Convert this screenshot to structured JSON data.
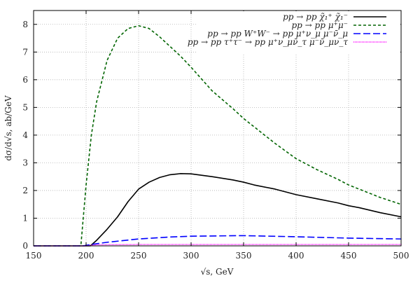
{
  "chart_data": {
    "type": "line",
    "xlabel": "√s, GeV",
    "ylabel": "dσ/d√s, ab/GeV",
    "xlim": [
      150,
      500
    ],
    "ylim": [
      0,
      8.5
    ],
    "xticks": [
      150,
      200,
      250,
      300,
      350,
      400,
      450,
      500
    ],
    "yticks": [
      0,
      1,
      2,
      3,
      4,
      5,
      6,
      7,
      8
    ],
    "grid": true,
    "legend_position": "top-right",
    "series": [
      {
        "name": "pp → pp χ̃₁⁺ χ̃₁⁻",
        "color": "#000000",
        "dash": "solid",
        "x": [
          150,
          204,
          210,
          220,
          230,
          240,
          250,
          260,
          270,
          280,
          290,
          300,
          320,
          340,
          350,
          360,
          380,
          400,
          420,
          440,
          450,
          460,
          480,
          500
        ],
        "y": [
          0,
          0,
          0.2,
          0.6,
          1.05,
          1.6,
          2.05,
          2.3,
          2.47,
          2.57,
          2.61,
          2.6,
          2.5,
          2.38,
          2.3,
          2.2,
          2.05,
          1.85,
          1.7,
          1.55,
          1.45,
          1.38,
          1.2,
          1.05
        ]
      },
      {
        "name": "pp → pp μ⁺μ⁻",
        "color": "#006400",
        "dash": "dashed",
        "x": [
          150,
          195,
          200,
          205,
          210,
          220,
          230,
          240,
          250,
          260,
          270,
          280,
          290,
          300,
          320,
          340,
          350,
          360,
          380,
          400,
          420,
          440,
          450,
          460,
          480,
          500
        ],
        "y": [
          0,
          0,
          2.2,
          4.0,
          5.2,
          6.7,
          7.5,
          7.85,
          7.95,
          7.85,
          7.55,
          7.2,
          6.85,
          6.45,
          5.6,
          4.95,
          4.6,
          4.3,
          3.7,
          3.15,
          2.75,
          2.4,
          2.2,
          2.05,
          1.75,
          1.5
        ]
      },
      {
        "name": "pp → pp W⁺W⁻ → pp μ⁺ν_μ μ⁻ν̄_μ",
        "color": "#0000ff",
        "dash": "longdash",
        "x": [
          150,
          197,
          205,
          220,
          250,
          280,
          300,
          350,
          400,
          450,
          500
        ],
        "y": [
          0,
          0,
          0.05,
          0.13,
          0.25,
          0.32,
          0.35,
          0.37,
          0.33,
          0.28,
          0.25
        ]
      },
      {
        "name": "pp → pp τ⁺τ⁻ → pp μ⁺ν_μν̄_τ μ⁻ν̄_μν_τ",
        "color": "#ff00ff",
        "dash": "dotted",
        "x": [
          150,
          200,
          210,
          250,
          300,
          400,
          500
        ],
        "y": [
          0,
          0,
          0.04,
          0.05,
          0.05,
          0.05,
          0.05
        ]
      }
    ]
  }
}
